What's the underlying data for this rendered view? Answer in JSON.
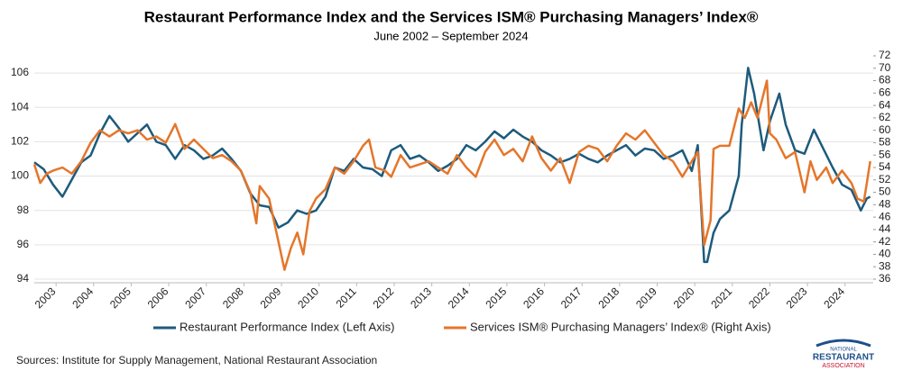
{
  "chart_data": {
    "type": "line",
    "title": "Restaurant Performance Index and the Services ISM® Purchasing Managers’ Index®",
    "subtitle": "June 2002 – September 2024",
    "source": "Sources: Institute for Supply Management, National Restaurant Association",
    "logo": {
      "top": "NATIONAL",
      "middle": "RESTAURANT",
      "bottom": "ASSOCIATION"
    },
    "xlim": [
      2002.42,
      2024.75
    ],
    "xticks": [
      {
        "value": 2003,
        "label": "2003"
      },
      {
        "value": 2004,
        "label": "2004"
      },
      {
        "value": 2005,
        "label": "2005"
      },
      {
        "value": 2006,
        "label": "2006"
      },
      {
        "value": 2007,
        "label": "2007"
      },
      {
        "value": 2008,
        "label": "2008"
      },
      {
        "value": 2009,
        "label": "2009"
      },
      {
        "value": 2010,
        "label": "2010"
      },
      {
        "value": 2011,
        "label": "2011"
      },
      {
        "value": 2012,
        "label": "2012"
      },
      {
        "value": 2013,
        "label": "2013"
      },
      {
        "value": 2014,
        "label": "2014"
      },
      {
        "value": 2015,
        "label": "2015"
      },
      {
        "value": 2016,
        "label": "2016"
      },
      {
        "value": 2017,
        "label": "2017"
      },
      {
        "value": 2018,
        "label": "2018"
      },
      {
        "value": 2019,
        "label": "2019"
      },
      {
        "value": 2020,
        "label": "2020"
      },
      {
        "value": 2021,
        "label": "2021"
      },
      {
        "value": 2022,
        "label": "2022"
      },
      {
        "value": 2023,
        "label": "2023"
      },
      {
        "value": 2024,
        "label": "2024"
      }
    ],
    "ylim": [
      94,
      107
    ],
    "yticks": [
      94,
      96,
      98,
      100,
      102,
      104,
      106
    ],
    "y2lim": [
      36,
      72
    ],
    "y2ticks": [
      36,
      38,
      40,
      42,
      44,
      46,
      48,
      50,
      52,
      54,
      56,
      58,
      60,
      62,
      64,
      66,
      68,
      70,
      72
    ],
    "grid": true,
    "series": [
      {
        "name": "Restaurant Performance Index (Left Axis)",
        "color": "#1d5b7c",
        "axis": "y",
        "x": [
          2002.42,
          2002.67,
          2002.92,
          2003.17,
          2003.42,
          2003.67,
          2003.92,
          2004.17,
          2004.42,
          2004.67,
          2004.92,
          2005.17,
          2005.42,
          2005.67,
          2005.92,
          2006.17,
          2006.42,
          2006.67,
          2006.92,
          2007.17,
          2007.42,
          2007.67,
          2007.92,
          2008.17,
          2008.42,
          2008.67,
          2008.92,
          2009.17,
          2009.42,
          2009.67,
          2009.92,
          2010.17,
          2010.42,
          2010.67,
          2010.92,
          2011.17,
          2011.42,
          2011.67,
          2011.92,
          2012.17,
          2012.42,
          2012.67,
          2012.92,
          2013.17,
          2013.42,
          2013.67,
          2013.92,
          2014.17,
          2014.42,
          2014.67,
          2014.92,
          2015.17,
          2015.42,
          2015.67,
          2015.92,
          2016.17,
          2016.42,
          2016.67,
          2016.92,
          2017.17,
          2017.42,
          2017.67,
          2017.92,
          2018.17,
          2018.42,
          2018.67,
          2018.92,
          2019.17,
          2019.42,
          2019.67,
          2019.92,
          2020.08,
          2020.25,
          2020.33,
          2020.5,
          2020.67,
          2020.92,
          2021.17,
          2021.25,
          2021.42,
          2021.58,
          2021.83,
          2022.0,
          2022.25,
          2022.42,
          2022.67,
          2022.92,
          2023.17,
          2023.42,
          2023.67,
          2023.92,
          2024.17,
          2024.42,
          2024.58,
          2024.67
        ],
        "values": [
          100.8,
          100.4,
          99.5,
          98.8,
          99.8,
          100.8,
          101.2,
          102.5,
          103.5,
          102.8,
          102.0,
          102.5,
          103.0,
          102.0,
          101.8,
          101.0,
          101.8,
          101.5,
          101.0,
          101.2,
          101.6,
          101.0,
          100.3,
          99.0,
          98.3,
          98.2,
          97.0,
          97.3,
          98.0,
          97.8,
          98.0,
          98.8,
          100.5,
          100.3,
          101.0,
          100.5,
          100.4,
          100.0,
          101.5,
          101.8,
          101.0,
          101.2,
          100.8,
          100.3,
          100.6,
          101.0,
          101.8,
          101.5,
          102.0,
          102.6,
          102.2,
          102.7,
          102.3,
          102.0,
          101.5,
          101.2,
          100.8,
          101.0,
          101.3,
          101.0,
          100.8,
          101.2,
          101.5,
          101.8,
          101.2,
          101.6,
          101.5,
          101.0,
          101.2,
          101.5,
          100.3,
          101.8,
          95.0,
          95.0,
          96.7,
          97.5,
          98.0,
          100.0,
          103.0,
          106.3,
          104.8,
          101.5,
          103.2,
          104.8,
          103.0,
          101.5,
          101.3,
          102.7,
          101.6,
          100.5,
          99.5,
          99.2,
          98.0,
          98.7,
          98.8
        ]
      },
      {
        "name": "Services ISM® Purchasing Managers’ Index® (Right Axis)",
        "color": "#e4762b",
        "axis": "y2",
        "x": [
          2002.42,
          2002.58,
          2002.75,
          2002.92,
          2003.17,
          2003.42,
          2003.67,
          2003.92,
          2004.17,
          2004.42,
          2004.67,
          2004.92,
          2005.17,
          2005.42,
          2005.67,
          2005.92,
          2006.17,
          2006.42,
          2006.67,
          2006.92,
          2007.17,
          2007.42,
          2007.67,
          2007.92,
          2008.17,
          2008.33,
          2008.42,
          2008.67,
          2008.92,
          2009.08,
          2009.25,
          2009.42,
          2009.58,
          2009.75,
          2009.92,
          2010.17,
          2010.42,
          2010.67,
          2010.92,
          2011.17,
          2011.33,
          2011.5,
          2011.75,
          2011.92,
          2012.17,
          2012.42,
          2012.67,
          2012.92,
          2013.17,
          2013.42,
          2013.67,
          2013.92,
          2014.17,
          2014.42,
          2014.67,
          2014.92,
          2015.17,
          2015.42,
          2015.67,
          2015.92,
          2016.17,
          2016.42,
          2016.67,
          2016.92,
          2017.17,
          2017.42,
          2017.67,
          2017.92,
          2018.17,
          2018.42,
          2018.67,
          2018.92,
          2019.17,
          2019.42,
          2019.67,
          2019.92,
          2020.08,
          2020.25,
          2020.42,
          2020.5,
          2020.67,
          2020.92,
          2021.17,
          2021.33,
          2021.5,
          2021.67,
          2021.92,
          2022.0,
          2022.17,
          2022.42,
          2022.67,
          2022.92,
          2023.08,
          2023.25,
          2023.5,
          2023.67,
          2023.92,
          2024.17,
          2024.33,
          2024.5,
          2024.58,
          2024.67
        ],
        "values": [
          54.5,
          51.5,
          53.0,
          53.5,
          54.0,
          53.0,
          55.0,
          58.0,
          60.0,
          59.0,
          60.0,
          59.5,
          60.0,
          58.5,
          59.0,
          58.0,
          61.0,
          57.0,
          58.5,
          57.0,
          55.5,
          56.0,
          55.0,
          53.5,
          50.0,
          45.0,
          51.0,
          49.0,
          42.0,
          37.5,
          41.0,
          43.5,
          40.0,
          47.0,
          49.0,
          50.5,
          54.0,
          53.0,
          55.0,
          57.5,
          58.5,
          54.0,
          53.5,
          52.5,
          56.0,
          54.0,
          54.5,
          55.0,
          54.0,
          53.0,
          56.0,
          54.0,
          52.5,
          56.5,
          58.5,
          56.0,
          57.0,
          55.0,
          59.0,
          55.5,
          53.5,
          55.5,
          51.5,
          56.5,
          57.5,
          57.0,
          55.0,
          57.5,
          59.5,
          58.5,
          60.0,
          58.0,
          56.0,
          55.0,
          52.5,
          55.0,
          56.5,
          41.5,
          45.5,
          57.0,
          57.5,
          57.5,
          63.5,
          62.0,
          64.5,
          62.0,
          68.0,
          59.5,
          58.5,
          55.5,
          56.5,
          50.0,
          55.0,
          52.0,
          54.0,
          51.5,
          53.5,
          51.5,
          49.0,
          48.5,
          51.5,
          55.0
        ]
      }
    ]
  }
}
